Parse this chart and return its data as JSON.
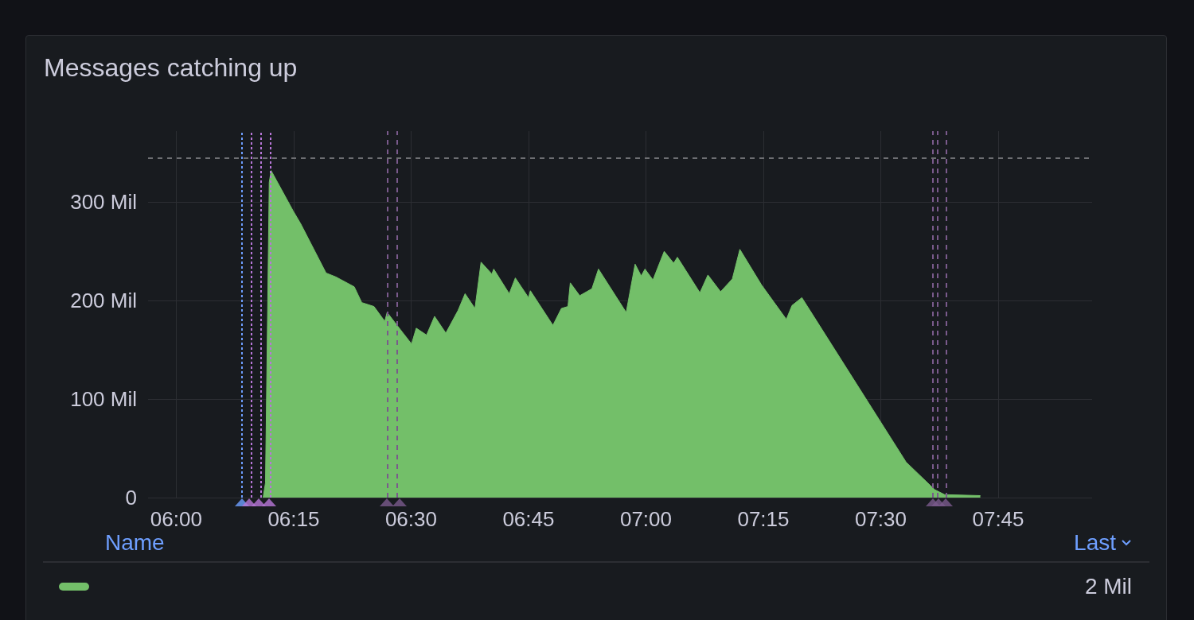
{
  "chart_data": {
    "type": "area",
    "title": "Messages catching up",
    "x": [
      6.185,
      6.19,
      6.198,
      6.202,
      6.249,
      6.265,
      6.319,
      6.34,
      6.379,
      6.395,
      6.421,
      6.444,
      6.449,
      6.47,
      6.501,
      6.511,
      6.533,
      6.55,
      6.574,
      6.6,
      6.615,
      6.636,
      6.649,
      6.672,
      6.676,
      6.709,
      6.722,
      6.75,
      6.754,
      6.802,
      6.82,
      6.834,
      6.839,
      6.859,
      6.885,
      6.899,
      6.958,
      6.977,
      6.99,
      6.998,
      7.015,
      7.029,
      7.039,
      7.059,
      7.067,
      7.115,
      7.132,
      7.159,
      7.184,
      7.2,
      7.246,
      7.299,
      7.311,
      7.332,
      7.554,
      7.615,
      7.636,
      7.712
    ],
    "series": [
      {
        "color": "#73bf69",
        "values": [
          0,
          15,
          320,
          332,
          291,
          278,
          228,
          224,
          214,
          198,
          194,
          179,
          188,
          175,
          156,
          172,
          165,
          184,
          167,
          190,
          207,
          192,
          239,
          227,
          232,
          207,
          223,
          203,
          210,
          175,
          192,
          194,
          218,
          205,
          212,
          232,
          188,
          237,
          225,
          232,
          221,
          238,
          250,
          238,
          244,
          208,
          226,
          209,
          222,
          252,
          216,
          181,
          195,
          203,
          36,
          8,
          3,
          2
        ]
      }
    ],
    "xlim": [
      5.94,
      7.95
    ],
    "xticks": [
      {
        "value": 6,
        "label": "06:00"
      },
      {
        "value": 6.25,
        "label": "06:15"
      },
      {
        "value": 6.5,
        "label": "06:30"
      },
      {
        "value": 6.75,
        "label": "06:45"
      },
      {
        "value": 7,
        "label": "07:00"
      },
      {
        "value": 7.25,
        "label": "07:15"
      },
      {
        "value": 7.5,
        "label": "07:30"
      },
      {
        "value": 7.75,
        "label": "07:45"
      }
    ],
    "ylim": [
      0,
      372
    ],
    "yticks": [
      0,
      {
        "value": 100,
        "label": "100 Mil"
      },
      {
        "value": 200,
        "label": "200 Mil"
      },
      {
        "value": 300,
        "label": "300 Mil"
      }
    ],
    "grid": true,
    "annotations": [
      "Name",
      "Last",
      "2 Mil"
    ],
    "ref_lines": [
      {
        "axis": "y",
        "value": 345,
        "color": "#6e6f73",
        "line_style": "dashed"
      },
      {
        "axis": "x",
        "value": 6.14,
        "color": "#6e9fff",
        "line_style": "dotted"
      },
      {
        "axis": "x",
        "value": 6.156,
        "color": "#b877d9",
        "line_style": "dotted"
      },
      {
        "axis": "x",
        "value": 6.176,
        "color": "#b877d9",
        "line_style": "dotted"
      },
      {
        "axis": "x",
        "value": 6.197,
        "color": "#b877d9",
        "line_style": "dotted"
      },
      {
        "axis": "x",
        "value": 6.449,
        "color": "#7a5a8c",
        "line_style": "dashed"
      },
      {
        "axis": "x",
        "value": 6.475,
        "color": "#7a5a8c",
        "line_style": "dashed"
      },
      {
        "axis": "x",
        "value": 7.611,
        "color": "#7a5a8c",
        "line_style": "dashed"
      },
      {
        "axis": "x",
        "value": 7.623,
        "color": "#7a5a8c",
        "line_style": "dashed"
      },
      {
        "axis": "x",
        "value": 7.639,
        "color": "#7a5a8c",
        "line_style": "dashed"
      }
    ]
  }
}
